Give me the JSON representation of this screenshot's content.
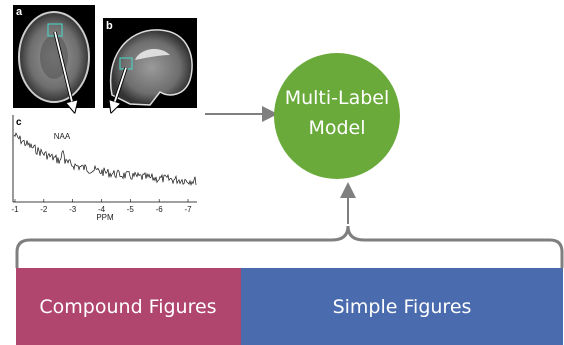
{
  "panels": [
    {
      "label": "a"
    },
    {
      "label": "b"
    },
    {
      "label": "c"
    }
  ],
  "plot": {
    "annotation": "NAA",
    "x_ticks": [
      "-1",
      "-2",
      "-3",
      "-4",
      "-5",
      "-6",
      "-7"
    ],
    "x_label": "PPM"
  },
  "model": {
    "label_lines": [
      "Multi-Label",
      "Model"
    ]
  },
  "categories": [
    {
      "label": "Compound Figures"
    },
    {
      "label": "Simple Figures"
    }
  ]
}
